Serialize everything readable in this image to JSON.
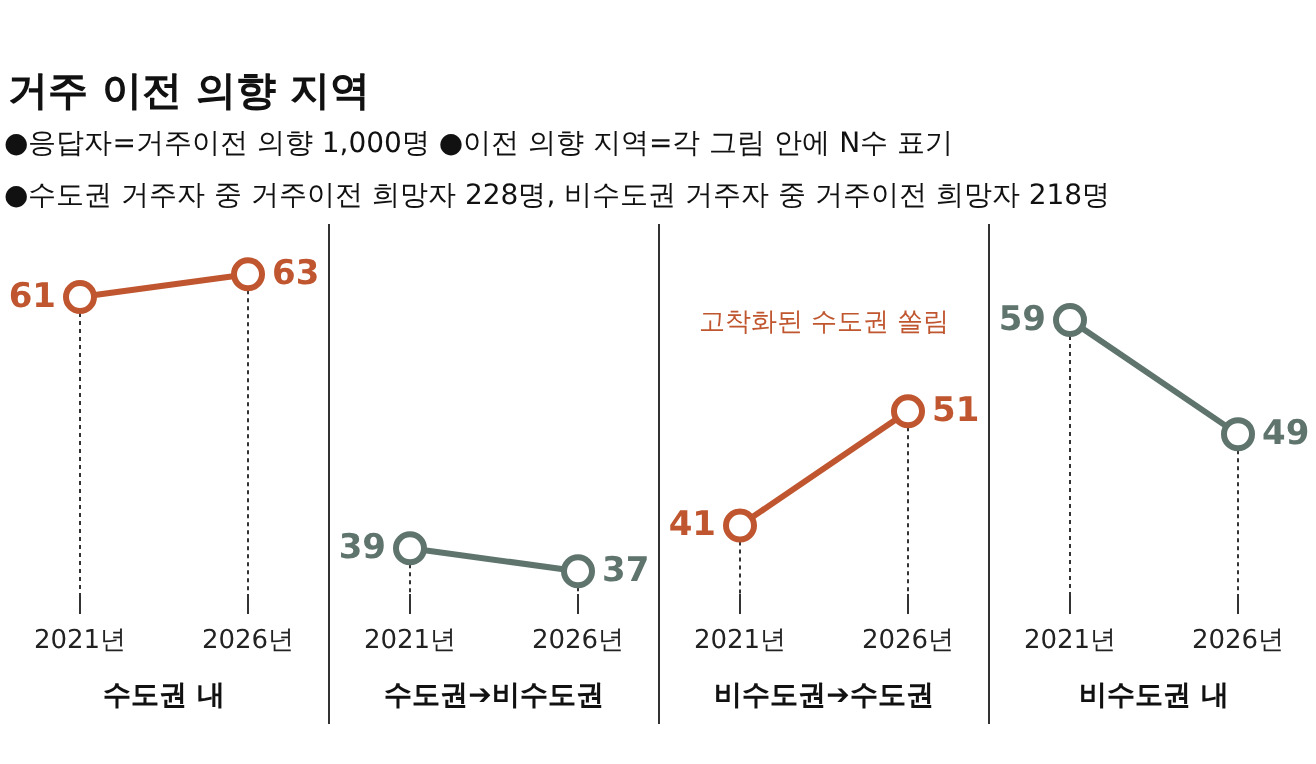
{
  "chart_data": [
    {
      "type": "line",
      "title": "거주 이전 의향 지역",
      "annotations": [
        "●응답자=거주이전 의향 1,000명  ●이전 의향 지역=각 그림 안에 N수 표기",
        "●수도권 거주자 중 거주이전 희망자 228명, 비수도권 거주자 중 거주이전 희망자 218명"
      ],
      "categories": [
        "2021년",
        "2026년"
      ],
      "values": [
        61,
        63
      ],
      "color": "#c0562f",
      "xlabel": "수도권 내",
      "tick_labels": "x",
      "data_labels": true,
      "marker": "circle"
    },
    {
      "type": "line",
      "categories": [
        "2021년",
        "2026년"
      ],
      "values": [
        39,
        37
      ],
      "color": "#5e746d",
      "xlabel": "수도권➔비수도권",
      "tick_labels": "x",
      "data_labels": true,
      "marker": "circle"
    },
    {
      "type": "line",
      "annotations": [
        "고착화된 수도권 쏠림"
      ],
      "categories": [
        "2021년",
        "2026년"
      ],
      "values": [
        41,
        51
      ],
      "color": "#c0562f",
      "xlabel": "비수도권➔수도권",
      "tick_labels": "x",
      "data_labels": true,
      "marker": "circle"
    },
    {
      "type": "line",
      "categories": [
        "2021년",
        "2026년"
      ],
      "values": [
        59,
        49
      ],
      "color": "#5e746d",
      "xlabel": "비수도권 내",
      "tick_labels": "x",
      "data_labels": true,
      "marker": "circle"
    }
  ]
}
